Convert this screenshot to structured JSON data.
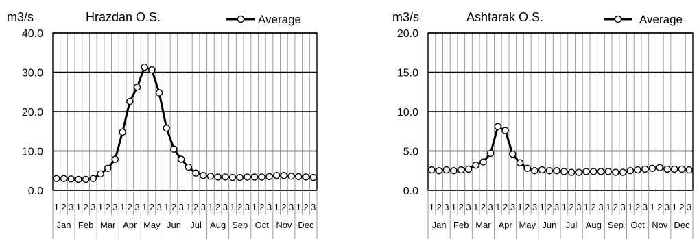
{
  "chart_data": [
    {
      "type": "line",
      "title": "Hrazdan O.S.",
      "ylabel": "m3/s",
      "ylim": [
        0,
        40
      ],
      "yticks": [
        "0.0",
        "10.0",
        "20.0",
        "30.0",
        "40.0"
      ],
      "decade_labels": [
        "1",
        "2",
        "3",
        "1",
        "2",
        "3",
        "1",
        "2",
        "3",
        "1",
        "2",
        "3",
        "1",
        "2",
        "3",
        "1",
        "2",
        "3",
        "1",
        "2",
        "3",
        "1",
        "2",
        "3",
        "1",
        "2",
        "3",
        "1",
        "2",
        "3",
        "1",
        "2",
        "3",
        "1",
        "2",
        "3"
      ],
      "months": [
        "Jan",
        "Feb",
        "Mar",
        "Apr",
        "May",
        "Jun",
        "Jul",
        "Aug",
        "Sep",
        "Oct",
        "Nov",
        "Dec"
      ],
      "grid": true,
      "legend_position": "top-right",
      "series": [
        {
          "name": "Average",
          "values": [
            3.0,
            3.0,
            2.9,
            2.8,
            2.8,
            3.0,
            4.2,
            5.6,
            7.9,
            14.8,
            22.6,
            26.2,
            31.3,
            30.6,
            24.8,
            15.8,
            10.5,
            7.9,
            5.9,
            4.4,
            3.8,
            3.6,
            3.4,
            3.4,
            3.3,
            3.3,
            3.4,
            3.4,
            3.4,
            3.5,
            3.8,
            3.8,
            3.6,
            3.5,
            3.4,
            3.3
          ]
        }
      ]
    },
    {
      "type": "line",
      "title": "Ashtarak O.S.",
      "ylabel": "m3/s",
      "ylim": [
        0,
        20
      ],
      "yticks": [
        "0.0",
        "5.0",
        "10.0",
        "15.0",
        "20.0"
      ],
      "decade_labels": [
        "1",
        "2",
        "3",
        "1",
        "2",
        "3",
        "1",
        "2",
        "3",
        "1",
        "2",
        "3",
        "1",
        "2",
        "3",
        "1",
        "2",
        "3",
        "1",
        "2",
        "3",
        "1",
        "2",
        "3",
        "1",
        "2",
        "3",
        "1",
        "2",
        "3",
        "1",
        "2",
        "3",
        "1",
        "2",
        "3"
      ],
      "months": [
        "Jan",
        "Feb",
        "Mar",
        "Apr",
        "May",
        "Jun",
        "Jul",
        "Aug",
        "Sep",
        "Oct",
        "Nov",
        "Dec"
      ],
      "grid": true,
      "legend_position": "top-right",
      "series": [
        {
          "name": "Average",
          "values": [
            2.6,
            2.5,
            2.6,
            2.5,
            2.6,
            2.7,
            3.2,
            3.6,
            4.7,
            8.1,
            7.6,
            4.6,
            3.5,
            2.8,
            2.5,
            2.6,
            2.5,
            2.5,
            2.4,
            2.3,
            2.3,
            2.4,
            2.4,
            2.4,
            2.4,
            2.3,
            2.3,
            2.5,
            2.6,
            2.7,
            2.8,
            2.9,
            2.7,
            2.7,
            2.7,
            2.6
          ]
        }
      ]
    }
  ]
}
